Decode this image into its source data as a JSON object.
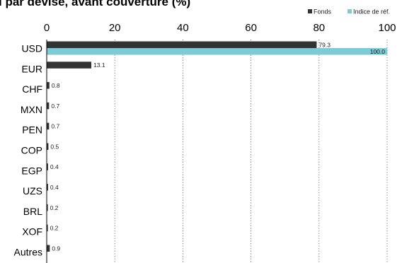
{
  "chart_data": {
    "type": "bar",
    "orientation": "horizontal",
    "title": "l par devise, avant couverture (%)",
    "categories": [
      "USD",
      "EUR",
      "CHF",
      "MXN",
      "PEN",
      "COP",
      "EGP",
      "UZS",
      "BRL",
      "XOF",
      "Autres"
    ],
    "series": [
      {
        "name": "Fonds",
        "color": "#333333",
        "values": [
          79.3,
          13.1,
          0.8,
          0.7,
          0.7,
          0.5,
          0.4,
          0.4,
          0.2,
          0.2,
          0.9
        ],
        "labels": [
          "79.3",
          "13.1",
          "0.8",
          "0.7",
          "0.7",
          "0.5",
          "0.4",
          "0.4",
          "0.2",
          "0.2",
          "0.9"
        ]
      },
      {
        "name": "Indice de réf.",
        "color": "#7ecad5",
        "values": [
          100.0,
          null,
          null,
          null,
          null,
          null,
          null,
          null,
          null,
          null,
          null
        ],
        "labels": [
          "100.0",
          "",
          "",
          "",
          "",
          "",
          "",
          "",
          "",
          "",
          ""
        ]
      }
    ],
    "xlim": [
      0,
      100
    ],
    "xticks": [
      "0",
      "20",
      "40",
      "60",
      "80",
      "100"
    ],
    "xtick_values": [
      0,
      20,
      40,
      60,
      80,
      100
    ],
    "grid": "vertical dotted",
    "legend": "top-right"
  }
}
